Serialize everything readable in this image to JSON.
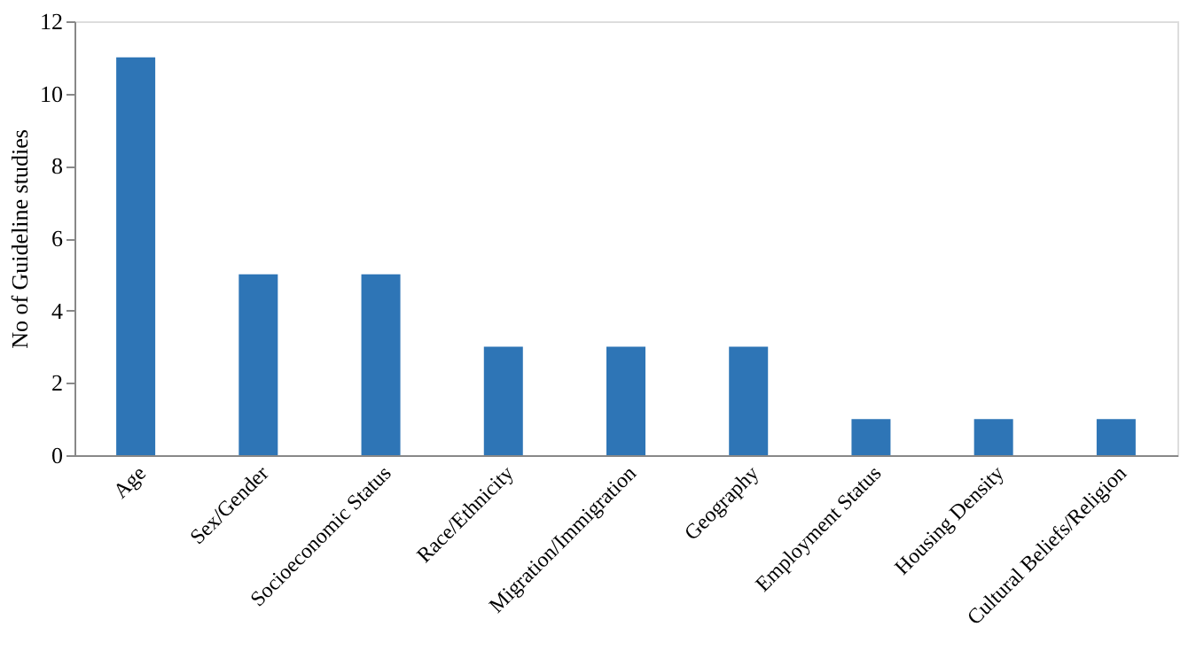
{
  "chart_data": {
    "type": "bar",
    "ylabel": "No of Guideline studies",
    "categories": [
      "Age",
      "Sex/Gender",
      "Socioeconomic Status",
      "Race/Ethnicity",
      "Migration/Immigration",
      "Geography",
      "Employment Status",
      "Housing Density",
      "Cultural Beliefs/Religion"
    ],
    "values": [
      11,
      5,
      5,
      3,
      3,
      3,
      1,
      1,
      1
    ],
    "color": "#2e75b6",
    "ylim": [
      0,
      12
    ],
    "yticks": [
      0,
      2,
      4,
      6,
      8,
      10,
      12
    ],
    "grid": false
  }
}
